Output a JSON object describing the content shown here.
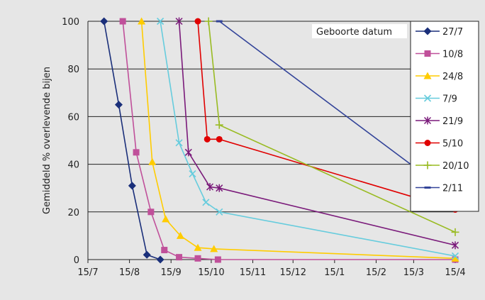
{
  "chart_data": {
    "type": "line",
    "title": "",
    "ylabel": "Gemiddeld  % overlevende bijen",
    "xlabel": "",
    "ylim": [
      0,
      100
    ],
    "y_ticks": [
      0,
      20,
      40,
      60,
      80,
      100
    ],
    "x_range": [
      "2008-07-15",
      "2009-04-15"
    ],
    "x_ticks": [
      {
        "date": "2008-07-15",
        "label": "15/7"
      },
      {
        "date": "2008-08-15",
        "label": "15/8"
      },
      {
        "date": "2008-09-15",
        "label": "15/9"
      },
      {
        "date": "2008-10-15",
        "label": "15/10"
      },
      {
        "date": "2008-11-15",
        "label": "15/11"
      },
      {
        "date": "2008-12-15",
        "label": "15/12"
      },
      {
        "date": "2009-01-15",
        "label": "15/1"
      },
      {
        "date": "2009-02-15",
        "label": "15/2"
      },
      {
        "date": "2009-03-15",
        "label": "15/3"
      },
      {
        "date": "2009-04-15",
        "label": "15/4"
      }
    ],
    "grid": {
      "horizontal": true,
      "vertical": false
    },
    "legend": {
      "title": "Geboorte datum",
      "position": "top-right"
    },
    "series": [
      {
        "name": "27/7",
        "color": "#1a2f7a",
        "marker": "diamond",
        "points": [
          [
            "2008-07-27",
            100
          ],
          [
            "2008-08-07",
            65
          ],
          [
            "2008-08-17",
            31
          ],
          [
            "2008-08-28",
            2
          ],
          [
            "2008-09-07",
            0
          ]
        ]
      },
      {
        "name": "10/8",
        "color": "#c0509a",
        "marker": "square",
        "points": [
          [
            "2008-08-10",
            100
          ],
          [
            "2008-08-20",
            45
          ],
          [
            "2008-08-31",
            20
          ],
          [
            "2008-09-10",
            4
          ],
          [
            "2008-09-21",
            1
          ],
          [
            "2008-10-05",
            0.5
          ],
          [
            "2008-10-20",
            0
          ],
          [
            "2009-04-15",
            0
          ]
        ]
      },
      {
        "name": "24/8",
        "color": "#ffcc00",
        "marker": "triangle",
        "points": [
          [
            "2008-08-24",
            100
          ],
          [
            "2008-09-01",
            41
          ],
          [
            "2008-09-11",
            17
          ],
          [
            "2008-09-22",
            10
          ],
          [
            "2008-10-05",
            5
          ],
          [
            "2008-10-17",
            4.5
          ],
          [
            "2009-04-15",
            0.5
          ]
        ]
      },
      {
        "name": "7/9",
        "color": "#66ccdd",
        "marker": "x",
        "points": [
          [
            "2008-09-07",
            100
          ],
          [
            "2008-09-21",
            49
          ],
          [
            "2008-10-01",
            36
          ],
          [
            "2008-10-11",
            24
          ],
          [
            "2008-10-21",
            20
          ],
          [
            "2009-04-15",
            1.5
          ]
        ]
      },
      {
        "name": "21/9",
        "color": "#7a1a7a",
        "marker": "star",
        "points": [
          [
            "2008-09-21",
            100
          ],
          [
            "2008-09-28",
            45
          ],
          [
            "2008-10-14",
            30.5
          ],
          [
            "2008-10-21",
            30
          ],
          [
            "2009-04-15",
            6
          ]
        ]
      },
      {
        "name": "5/10",
        "color": "#e00000",
        "marker": "circle",
        "points": [
          [
            "2008-10-05",
            100
          ],
          [
            "2008-10-12",
            50.5
          ],
          [
            "2008-10-21",
            50.5
          ],
          [
            "2009-04-15",
            21
          ]
        ]
      },
      {
        "name": "20/10",
        "color": "#99bb22",
        "marker": "plus",
        "points": [
          [
            "2008-10-13",
            100
          ],
          [
            "2008-10-21",
            56.5
          ],
          [
            "2009-04-15",
            11.5
          ]
        ]
      },
      {
        "name": "2/11",
        "color": "#334499",
        "marker": "dash",
        "points": [
          [
            "2008-10-21",
            100
          ],
          [
            "2009-04-15",
            26
          ]
        ]
      }
    ]
  }
}
